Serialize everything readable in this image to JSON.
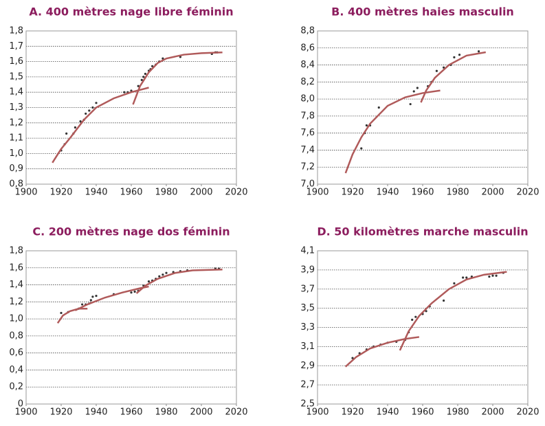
{
  "chart_data": [
    {
      "type": "scatter",
      "title": "A. 400 mètres nage libre féminin",
      "xlim": [
        1900,
        2020
      ],
      "xticks": [
        1900,
        1920,
        1940,
        1960,
        1980,
        2000,
        2020
      ],
      "ylim": [
        0.8,
        1.8
      ],
      "yticks": [
        {
          "value": 0.8,
          "label": "0,8"
        },
        {
          "value": 0.9,
          "label": "0,9"
        },
        {
          "value": 1.0,
          "label": "1,0"
        },
        {
          "value": 1.1,
          "label": "1,1"
        },
        {
          "value": 1.2,
          "label": "1,2"
        },
        {
          "value": 1.3,
          "label": "1,3"
        },
        {
          "value": 1.4,
          "label": "1,4"
        },
        {
          "value": 1.5,
          "label": "1,5"
        },
        {
          "value": 1.6,
          "label": "1,6"
        },
        {
          "value": 1.7,
          "label": "1,7"
        },
        {
          "value": 1.8,
          "label": "1,8"
        }
      ],
      "grid": true,
      "series": [
        {
          "style": "markers",
          "color": "#333333",
          "x": [
            1920,
            1922,
            1923,
            1927,
            1928,
            1931,
            1933,
            1934,
            1936,
            1938,
            1940,
            1956,
            1958,
            1960,
            1964,
            1966,
            1967,
            1968,
            1970,
            1971,
            1972,
            1974,
            1976,
            1978,
            1988,
            2006,
            2008,
            2009
          ],
          "values": [
            1.02,
            1.06,
            1.13,
            1.13,
            1.17,
            1.21,
            1.22,
            1.26,
            1.28,
            1.3,
            1.33,
            1.4,
            1.4,
            1.41,
            1.44,
            1.48,
            1.5,
            1.52,
            1.54,
            1.55,
            1.57,
            1.58,
            1.6,
            1.62,
            1.63,
            1.65,
            1.66,
            1.66
          ]
        },
        {
          "style": "line",
          "color": "#b05a5a",
          "x": [
            1915,
            1920,
            1925,
            1933,
            1940,
            1950,
            1960,
            1970
          ],
          "values": [
            0.94,
            1.03,
            1.1,
            1.22,
            1.3,
            1.36,
            1.4,
            1.43
          ]
        },
        {
          "style": "line",
          "color": "#b05a5a",
          "x": [
            1961,
            1965,
            1970,
            1975,
            1980,
            1990,
            2000,
            2012
          ],
          "values": [
            1.32,
            1.44,
            1.53,
            1.59,
            1.62,
            1.645,
            1.655,
            1.66
          ]
        }
      ]
    },
    {
      "type": "scatter",
      "title": "B. 400 mètres haies masculin",
      "xlim": [
        1900,
        2020
      ],
      "xticks": [
        1900,
        1920,
        1940,
        1960,
        1980,
        2000,
        2020
      ],
      "ylim": [
        7.0,
        8.8
      ],
      "yticks": [
        {
          "value": 7.0,
          "label": "7,0"
        },
        {
          "value": 7.2,
          "label": "7,2"
        },
        {
          "value": 7.4,
          "label": "7,4"
        },
        {
          "value": 7.6,
          "label": "7,6"
        },
        {
          "value": 7.8,
          "label": "7,8"
        },
        {
          "value": 8.0,
          "label": "8,0"
        },
        {
          "value": 8.2,
          "label": "8,2"
        },
        {
          "value": 8.4,
          "label": "8,4"
        },
        {
          "value": 8.6,
          "label": "8,6"
        },
        {
          "value": 8.8,
          "label": "8,8"
        }
      ],
      "grid": true,
      "series": [
        {
          "style": "markers",
          "color": "#333333",
          "x": [
            1925,
            1927,
            1928,
            1930,
            1935,
            1953,
            1955,
            1957,
            1963,
            1965,
            1968,
            1972,
            1976,
            1978,
            1981,
            1992
          ],
          "values": [
            7.42,
            7.6,
            7.69,
            7.69,
            7.9,
            7.94,
            8.09,
            8.13,
            8.15,
            8.2,
            8.33,
            8.37,
            8.4,
            8.49,
            8.52,
            8.56
          ]
        },
        {
          "style": "line",
          "color": "#b05a5a",
          "x": [
            1916,
            1920,
            1925,
            1930,
            1940,
            1950,
            1960,
            1970
          ],
          "values": [
            7.13,
            7.35,
            7.55,
            7.71,
            7.92,
            8.02,
            8.07,
            8.1
          ]
        },
        {
          "style": "line",
          "color": "#b05a5a",
          "x": [
            1959,
            1962,
            1967,
            1975,
            1985,
            1996
          ],
          "values": [
            7.96,
            8.1,
            8.25,
            8.4,
            8.51,
            8.55
          ]
        }
      ]
    },
    {
      "type": "scatter",
      "title": "C. 200 mètres nage dos féminin",
      "xlim": [
        1900,
        2020
      ],
      "xticks": [
        1900,
        1920,
        1940,
        1960,
        1980,
        2000,
        2020
      ],
      "ylim": [
        0,
        1.8
      ],
      "yticks": [
        0,
        {
          "value": 0.2,
          "label": "0,2"
        },
        {
          "value": 0.4,
          "label": "0,4"
        },
        {
          "value": 0.6,
          "label": "0,6"
        },
        {
          "value": 0.8,
          "label": "0,8"
        },
        {
          "value": 1.0,
          "label": "1,0"
        },
        {
          "value": 1.2,
          "label": "1,2"
        },
        {
          "value": 1.4,
          "label": "1,4"
        },
        {
          "value": 1.6,
          "label": "1,6"
        },
        {
          "value": 1.8,
          "label": "1,8"
        }
      ],
      "grid": true,
      "series": [
        {
          "style": "markers",
          "color": "#333333",
          "x": [
            1920,
            1924,
            1930,
            1932,
            1934,
            1936,
            1937,
            1938,
            1940,
            1950,
            1960,
            1962,
            1964,
            1967,
            1970,
            1972,
            1974,
            1976,
            1978,
            1980,
            1984,
            1988,
            1992,
            2008,
            2010
          ],
          "values": [
            1.07,
            1.08,
            1.12,
            1.17,
            1.17,
            1.18,
            1.22,
            1.26,
            1.27,
            1.29,
            1.31,
            1.32,
            1.33,
            1.39,
            1.44,
            1.45,
            1.47,
            1.5,
            1.52,
            1.54,
            1.55,
            1.56,
            1.57,
            1.59,
            1.59
          ]
        },
        {
          "style": "line",
          "color": "#b05a5a",
          "x": [
            1918,
            1921,
            1925,
            1930,
            1935
          ],
          "values": [
            0.95,
            1.04,
            1.09,
            1.12,
            1.12
          ]
        },
        {
          "style": "line",
          "color": "#b05a5a",
          "x": [
            1928,
            1935,
            1945,
            1955,
            1965,
            1970
          ],
          "values": [
            1.1,
            1.17,
            1.25,
            1.31,
            1.36,
            1.38
          ]
        },
        {
          "style": "line",
          "color": "#b05a5a",
          "x": [
            1963,
            1968,
            1975,
            1985,
            1995,
            2012
          ],
          "values": [
            1.3,
            1.39,
            1.47,
            1.54,
            1.57,
            1.58
          ]
        }
      ]
    },
    {
      "type": "scatter",
      "title": "D. 50 kilomètres marche masculin",
      "xlim": [
        1900,
        2020
      ],
      "xticks": [
        1900,
        1920,
        1940,
        1960,
        1980,
        2000,
        2020
      ],
      "ylim": [
        2.5,
        4.1
      ],
      "yticks": [
        {
          "value": 2.5,
          "label": "2,5"
        },
        {
          "value": 2.7,
          "label": "2,7"
        },
        {
          "value": 2.9,
          "label": "2,9"
        },
        {
          "value": 3.1,
          "label": "3,1"
        },
        {
          "value": 3.3,
          "label": "3,3"
        },
        {
          "value": 3.5,
          "label": "3,5"
        },
        {
          "value": 3.7,
          "label": "3,7"
        },
        {
          "value": 3.9,
          "label": "3,9"
        },
        {
          "value": 4.1,
          "label": "4,1"
        }
      ],
      "grid": true,
      "series": [
        {
          "style": "markers",
          "color": "#333333",
          "x": [
            1920,
            1924,
            1928,
            1932,
            1936,
            1940,
            1945,
            1950,
            1952,
            1954,
            1956,
            1960,
            1962,
            1964,
            1972,
            1978,
            1983,
            1985,
            1988,
            1998,
            2000,
            2002,
            2006
          ],
          "values": [
            2.98,
            3.03,
            3.07,
            3.1,
            3.12,
            3.14,
            3.15,
            3.17,
            3.25,
            3.38,
            3.41,
            3.44,
            3.47,
            3.52,
            3.58,
            3.76,
            3.82,
            3.82,
            3.83,
            3.83,
            3.84,
            3.84,
            3.87
          ]
        },
        {
          "style": "line",
          "color": "#b05a5a",
          "x": [
            1916,
            1922,
            1930,
            1940,
            1950,
            1958
          ],
          "values": [
            2.89,
            2.99,
            3.08,
            3.14,
            3.18,
            3.2
          ]
        },
        {
          "style": "line",
          "color": "#b05a5a",
          "x": [
            1947,
            1952,
            1958,
            1965,
            1975,
            1985,
            1995,
            2008
          ],
          "values": [
            3.06,
            3.26,
            3.42,
            3.55,
            3.7,
            3.8,
            3.85,
            3.88
          ]
        }
      ]
    }
  ]
}
